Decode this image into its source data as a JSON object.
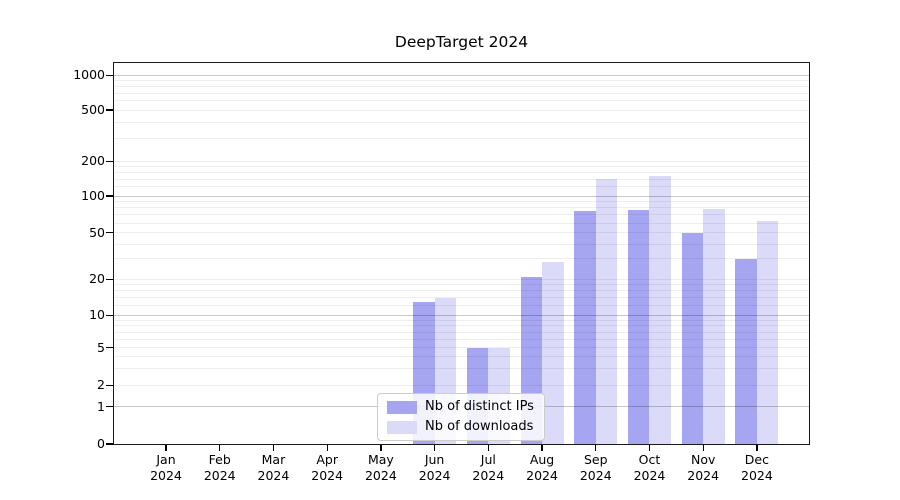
{
  "chart_data": {
    "type": "bar",
    "title": "DeepTarget 2024",
    "xlabel": "",
    "ylabel": "",
    "categories": [
      "Jan 2024",
      "Feb 2024",
      "Mar 2024",
      "Apr 2024",
      "May 2024",
      "Jun 2024",
      "Jul 2024",
      "Aug 2024",
      "Sep 2024",
      "Oct 2024",
      "Nov 2024",
      "Dec 2024"
    ],
    "series": [
      {
        "name": "Nb of distinct IPs",
        "color": "#a5a5f1",
        "values": [
          0,
          0,
          0,
          0,
          0,
          13,
          5,
          21,
          75,
          77,
          50,
          30
        ]
      },
      {
        "name": "Nb of downloads",
        "color": "#dbdbf9",
        "values": [
          0,
          0,
          0,
          0,
          0,
          14,
          5,
          28,
          140,
          150,
          78,
          62
        ]
      }
    ],
    "yscale": "symlog",
    "yticks": [
      0,
      1,
      2,
      5,
      10,
      20,
      50,
      100,
      200,
      500,
      1000
    ],
    "ylim": [
      0,
      1275
    ],
    "grid": "horizontal major + faint minor gridlines",
    "legend_position": "lower center, inside axes"
  },
  "colors": {
    "bar_distinct_ips": "#a5a5f1",
    "bar_downloads": "#dbdbf9",
    "grid_major": "#c6c6c6",
    "grid_minor": "#ededed",
    "spine": "#1a1a1a",
    "text": "#000000",
    "legend_border": "#cccccc"
  }
}
